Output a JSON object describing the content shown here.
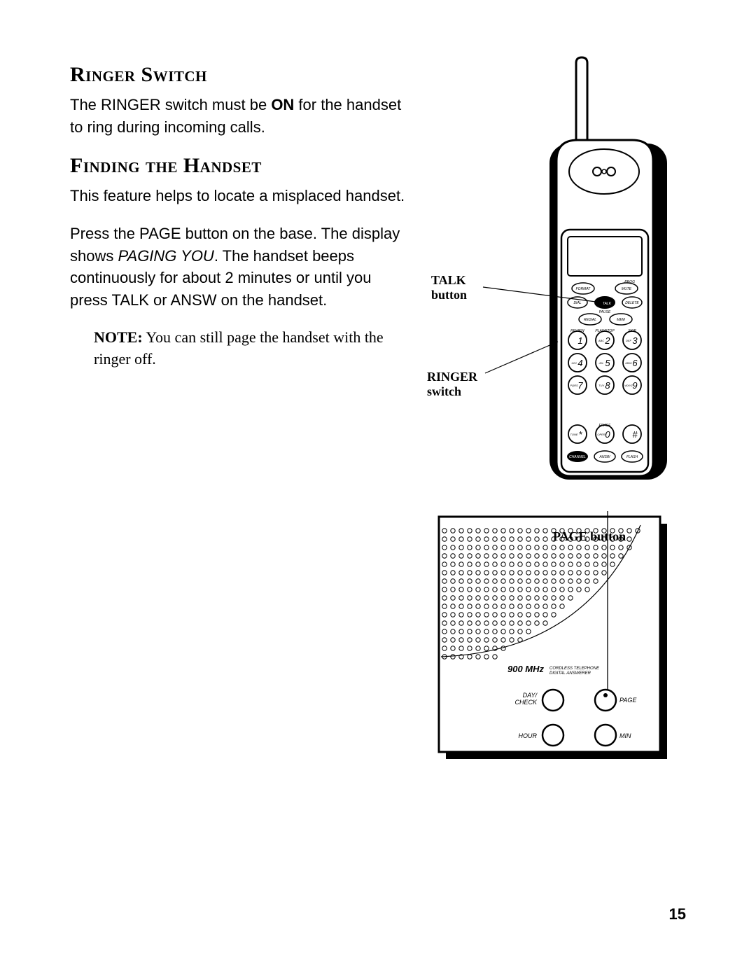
{
  "page_number": "15",
  "sections": [
    {
      "heading": "Ringer Switch",
      "paragraphs": [
        "The RINGER switch must be ON for the handset to ring during incoming calls."
      ],
      "bold_words": [
        "ON"
      ]
    },
    {
      "heading": "Finding the Handset",
      "paragraphs": [
        "This feature helps to locate a misplaced handset.",
        "Press the PAGE button on the base. The display shows PAGING YOU. The handset beeps continuously for about 2 minutes or until you press TALK or ANSW on the handset."
      ],
      "italic_phrases": [
        "PAGING YOU"
      ],
      "note": {
        "label": "NOTE:",
        "text": "You can still page the handset with the ringer off."
      }
    }
  ],
  "figure_labels": {
    "talk_button": "TALK button",
    "ringer_switch": "RINGER switch",
    "page_button": "PAGE button"
  },
  "handset": {
    "top_buttons": {
      "row1": [
        "FORMAT",
        "MUTE"
      ],
      "row2": [
        "DIAL",
        "TALK",
        "DELETE"
      ],
      "row3": [
        "REDIAL",
        "MEM"
      ],
      "top_small": "PROG",
      "mid_small": "PAUSE",
      "row_labels": [
        "REVIEW",
        "PLAY/STOP",
        "SKIP"
      ]
    },
    "keypad": [
      {
        "n": "1",
        "t": ""
      },
      {
        "n": "2",
        "t": "ABC"
      },
      {
        "n": "3",
        "t": "DEF"
      },
      {
        "n": "4",
        "t": "GHI"
      },
      {
        "n": "5",
        "t": "JKL"
      },
      {
        "n": "6",
        "t": "MNO"
      },
      {
        "n": "7",
        "t": "PQRS"
      },
      {
        "n": "8",
        "t": "TUV"
      },
      {
        "n": "9",
        "t": "WXYZ"
      },
      {
        "n": "*",
        "t": "TONE"
      },
      {
        "n": "0",
        "t": "OPER"
      },
      {
        "n": "#",
        "t": ""
      }
    ],
    "erase_label": "ERASE",
    "bottom_buttons": [
      "CHANNEL",
      "ANSW",
      "FLASH"
    ]
  },
  "base": {
    "brand_line": "900 MHz",
    "brand_sub1": "CORDLESS TELEPHONE",
    "brand_sub2": "DIGITAL ANSWERER",
    "buttons": {
      "day_check": "DAY/ CHECK",
      "page": "PAGE",
      "hour": "HOUR",
      "min": "MIN"
    }
  },
  "colors": {
    "text": "#000000",
    "bg": "#ffffff",
    "line": "#000000"
  }
}
